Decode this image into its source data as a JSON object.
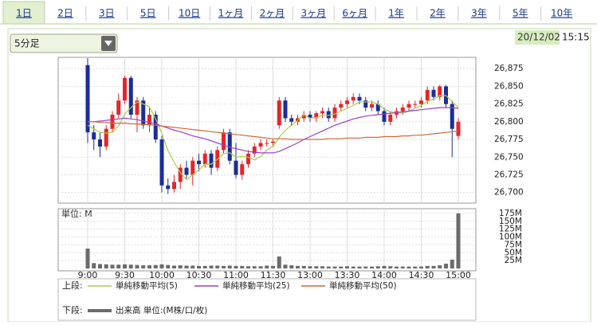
{
  "tabs": [
    "1日",
    "2日",
    "3日",
    "5日",
    "10日",
    "1ヶ月",
    "2ヶ月",
    "3ヶ月",
    "6ヶ月",
    "1年",
    "2年",
    "3年",
    "5年",
    "10年"
  ],
  "interval": "5分足",
  "date": "20/12/02",
  "time": "15:15",
  "legend": {
    "upper_label": "上段:",
    "lower_label": "下段:"
  },
  "chart_data": [
    {
      "type": "candlestick",
      "categories": [
        "9:00",
        null,
        null,
        null,
        null,
        null,
        "9:30",
        null,
        null,
        null,
        null,
        null,
        "10:00",
        null,
        null,
        null,
        null,
        null,
        "10:30",
        null,
        null,
        null,
        null,
        null,
        "11:00",
        null,
        null,
        null,
        null,
        null,
        "11:30",
        null,
        null,
        null,
        null,
        null,
        "13:00",
        null,
        null,
        null,
        null,
        null,
        "13:30",
        null,
        null,
        null,
        null,
        null,
        "14:00",
        null,
        null,
        null,
        null,
        null,
        "14:30",
        null,
        null,
        null,
        null,
        null,
        "15:00"
      ],
      "open": [
        26880,
        26785,
        26775,
        26765,
        26790,
        26810,
        26830,
        26862,
        26810,
        26830,
        26795,
        26810,
        26775,
        26710,
        26705,
        26715,
        26735,
        26725,
        26745,
        26740,
        26755,
        26735,
        26760,
        26785,
        26745,
        26725,
        26740,
        26755,
        26765,
        26770,
        26770,
        26795,
        26830,
        26805,
        26800,
        26805,
        26810,
        26805,
        26812,
        26815,
        26805,
        26820,
        26825,
        26830,
        26835,
        26830,
        26820,
        26825,
        26815,
        26800,
        26810,
        26815,
        26820,
        26825,
        26825,
        26830,
        26845,
        26835,
        26850,
        26825,
        26780
      ],
      "high": [
        26890,
        26795,
        26785,
        26795,
        26815,
        26840,
        26865,
        26865,
        26835,
        26835,
        26820,
        26815,
        26780,
        26720,
        26725,
        26740,
        26745,
        26750,
        26755,
        26760,
        26760,
        26765,
        26790,
        26790,
        26770,
        26745,
        26760,
        26770,
        26775,
        26775,
        26775,
        26835,
        26835,
        26810,
        26810,
        26815,
        26815,
        26815,
        26820,
        26820,
        26825,
        26830,
        26835,
        26840,
        26840,
        26835,
        26830,
        26830,
        26820,
        26815,
        26820,
        26825,
        26830,
        26830,
        26835,
        26850,
        26850,
        26852,
        26852,
        26830,
        26805
      ],
      "low": [
        26770,
        26760,
        26750,
        26760,
        26785,
        26805,
        26825,
        26805,
        26785,
        26790,
        26785,
        26770,
        26700,
        26698,
        26700,
        26705,
        26720,
        26710,
        26730,
        26735,
        26725,
        26730,
        26755,
        26740,
        26720,
        26718,
        26735,
        26750,
        26760,
        26765,
        26765,
        26790,
        26800,
        26795,
        26795,
        26800,
        26800,
        26800,
        26805,
        26800,
        26800,
        26815,
        26820,
        26825,
        26825,
        26815,
        26815,
        26810,
        26795,
        26795,
        26805,
        26810,
        26815,
        26820,
        26820,
        26825,
        26830,
        26830,
        26820,
        26750,
        26775
      ],
      "close": [
        26785,
        26775,
        26765,
        26790,
        26810,
        26830,
        26862,
        26810,
        26830,
        26795,
        26810,
        26775,
        26710,
        26705,
        26715,
        26735,
        26725,
        26745,
        26740,
        26755,
        26735,
        26760,
        26785,
        26745,
        26725,
        26740,
        26755,
        26765,
        26770,
        26770,
        26772,
        26830,
        26805,
        26800,
        26805,
        26810,
        26805,
        26812,
        26815,
        26805,
        26820,
        26825,
        26830,
        26835,
        26830,
        26820,
        26825,
        26815,
        26800,
        26810,
        26815,
        26820,
        26825,
        26825,
        26830,
        26845,
        26835,
        26850,
        26825,
        26790,
        26800
      ],
      "up_color": "#e4262b",
      "down_color": "#1b2d96",
      "series": [
        {
          "name": "単純移動平均(5)",
          "color": "#a8cf45",
          "values": [
            26795,
            26790,
            26785,
            26784,
            26785,
            26794,
            26811,
            26820,
            26828,
            26825,
            26821,
            26804,
            26784,
            26759,
            26743,
            26728,
            26718,
            26725,
            26732,
            26740,
            26740,
            26747,
            26755,
            26756,
            26750,
            26751,
            26750,
            26746,
            26751,
            26760,
            26765,
            26778,
            26788,
            26795,
            26802,
            26810,
            26805,
            26806,
            26809,
            26809,
            26811,
            26815,
            26819,
            26823,
            26828,
            26828,
            26828,
            26825,
            26818,
            26814,
            26813,
            26812,
            26815,
            26819,
            26823,
            26829,
            26832,
            26837,
            26837,
            26829,
            26820
          ]
        },
        {
          "name": "単純移動平均(25)",
          "color": "#9b3fc8",
          "values": [
            26800,
            26800,
            26801,
            26802,
            26803,
            26804,
            26805,
            26804,
            26803,
            26801,
            26799,
            26797,
            26794,
            26791,
            26788,
            26786,
            26783,
            26780,
            26778,
            26776,
            26773,
            26770,
            26767,
            26764,
            26762,
            26760,
            26758,
            26757,
            26756,
            26756,
            26756,
            26758,
            26762,
            26766,
            26770,
            26775,
            26779,
            26783,
            26787,
            26791,
            26795,
            26798,
            26801,
            26804,
            26806,
            26808,
            26809,
            26810,
            26811,
            26812,
            26813,
            26814,
            26815,
            26816,
            26817,
            26818,
            26819,
            26820,
            26820,
            26820,
            26819
          ]
        },
        {
          "name": "単純移動平均(50)",
          "color": "#d2693a",
          "values": [
            26800,
            26800,
            26799,
            26799,
            26798,
            26798,
            26798,
            26797,
            26797,
            26796,
            26796,
            26795,
            26794,
            26793,
            26792,
            26791,
            26790,
            26789,
            26788,
            26787,
            26786,
            26785,
            26784,
            26783,
            26782,
            26781,
            26780,
            26779,
            26778,
            26777,
            26776,
            26776,
            26776,
            26775,
            26775,
            26775,
            26775,
            26775,
            26775,
            26776,
            26776,
            26776,
            26777,
            26777,
            26777,
            26778,
            26778,
            26778,
            26779,
            26779,
            26779,
            26780,
            26780,
            26781,
            26781,
            26782,
            26783,
            26784,
            26785,
            26786,
            26787
          ]
        }
      ],
      "ylim": [
        26685,
        26891
      ],
      "yticks": [
        {
          "value": 26700,
          "label": "26,700"
        },
        {
          "value": 26725,
          "label": "26,725"
        },
        {
          "value": 26750,
          "label": "26,750"
        },
        {
          "value": 26775,
          "label": "26,775"
        },
        {
          "value": 26800,
          "label": "26,800"
        },
        {
          "value": 26825,
          "label": "26,825"
        },
        {
          "value": 26850,
          "label": "26,850"
        },
        {
          "value": 26875,
          "label": "26,875"
        }
      ],
      "grid": true
    },
    {
      "type": "bar",
      "unit_label": "単位: M",
      "series": [
        {
          "name": "出来高 単位:(M株/口/枚)",
          "color": "#6b6b6b",
          "values": [
            63,
            17,
            14,
            13,
            12,
            12,
            13,
            12,
            11,
            10,
            10,
            11,
            13,
            11,
            9,
            10,
            9,
            9,
            8,
            8,
            9,
            9,
            8,
            9,
            8,
            8,
            7,
            7,
            7,
            9,
            8,
            38,
            12,
            10,
            8,
            8,
            7,
            7,
            7,
            6,
            6,
            6,
            7,
            6,
            6,
            6,
            6,
            7,
            8,
            7,
            6,
            6,
            6,
            6,
            6,
            8,
            8,
            10,
            15,
            28,
            175
          ]
        }
      ],
      "ylim": [
        0,
        190
      ],
      "yticks": [
        {
          "value": 25,
          "label": "25M"
        },
        {
          "value": 50,
          "label": "50M"
        },
        {
          "value": 75,
          "label": "75M"
        },
        {
          "value": 100,
          "label": "100M"
        },
        {
          "value": 125,
          "label": "125M"
        },
        {
          "value": 150,
          "label": "150M"
        },
        {
          "value": 175,
          "label": "175M"
        }
      ],
      "grid": true
    }
  ]
}
